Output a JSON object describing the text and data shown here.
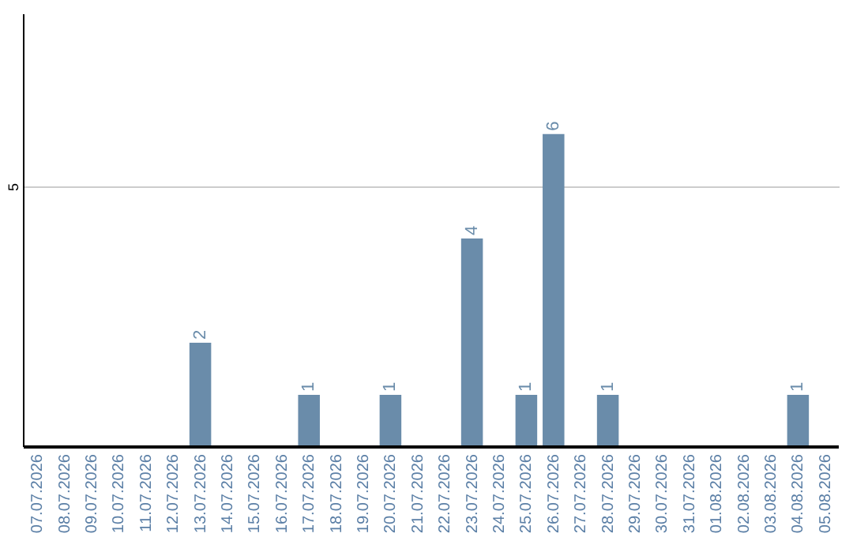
{
  "chart_data": {
    "type": "bar",
    "categories": [
      "07.07.2026",
      "08.07.2026",
      "09.07.2026",
      "10.07.2026",
      "11.07.2026",
      "12.07.2026",
      "13.07.2026",
      "14.07.2026",
      "15.07.2026",
      "16.07.2026",
      "17.07.2026",
      "18.07.2026",
      "19.07.2026",
      "20.07.2026",
      "21.07.2026",
      "22.07.2026",
      "23.07.2026",
      "24.07.2026",
      "25.07.2026",
      "26.07.2026",
      "27.07.2026",
      "28.07.2026",
      "29.07.2026",
      "30.07.2026",
      "31.07.2026",
      "01.08.2026",
      "02.08.2026",
      "03.08.2026",
      "04.08.2026",
      "05.08.2026"
    ],
    "values": [
      0,
      0,
      0,
      0,
      0,
      0,
      2,
      0,
      0,
      0,
      1,
      0,
      0,
      1,
      0,
      0,
      4,
      0,
      1,
      6,
      0,
      1,
      0,
      0,
      0,
      0,
      0,
      0,
      1,
      0
    ],
    "value_labels": [
      null,
      null,
      null,
      null,
      null,
      null,
      "2",
      null,
      null,
      null,
      "1",
      null,
      null,
      "1",
      null,
      null,
      "4",
      null,
      "1",
      "6",
      null,
      "1",
      null,
      null,
      null,
      null,
      null,
      null,
      "1",
      null
    ],
    "color": "#6a8caa",
    "ylim": [
      0,
      8.3
    ],
    "yticks": [
      5
    ],
    "grid": "y"
  }
}
